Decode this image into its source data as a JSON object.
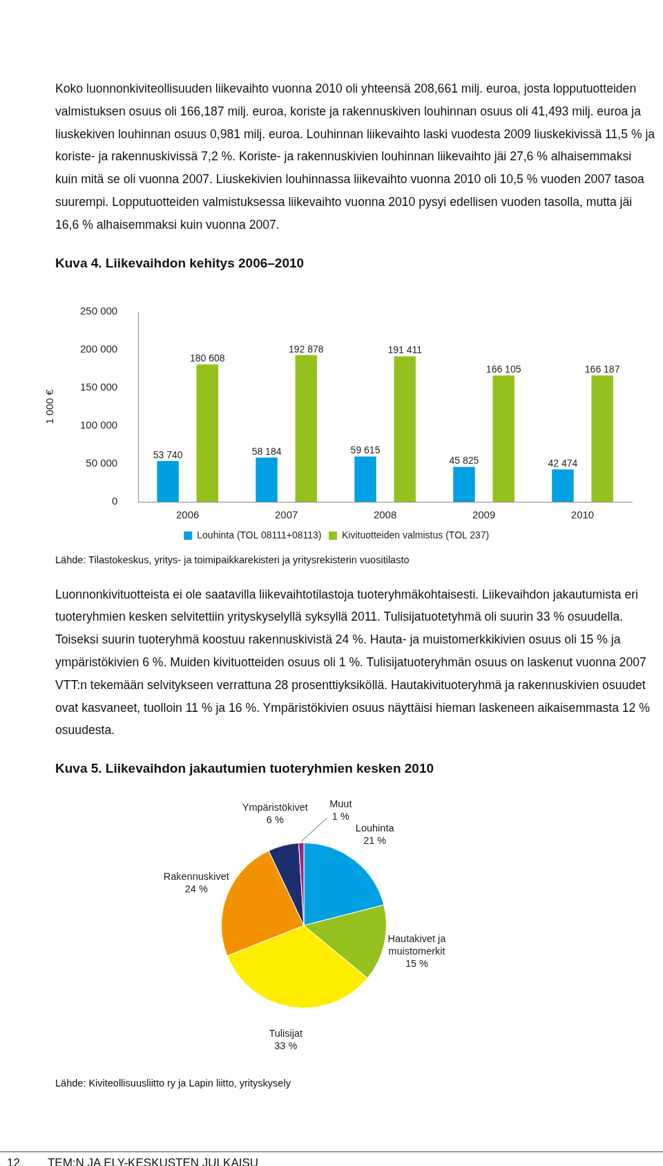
{
  "chart_data": [
    {
      "type": "other",
      "annotations": [
        "Koko luonnonkiviteollisuuden liikevaihto vuonna 2010 oli yhteensä 208,661 milj. euroa, josta lopputuotteiden valmistuksen osuus oli 166,187 milj. euroa, koriste ja rakennuskiven louhinnan osuus oli 41,493 milj. euroa ja liuskekiven louhinnan osuus 0,981 milj. euroa. Louhinnan liikevaihto laski vuodesta 2009 liuskekivissä 11,5 % ja koriste- ja rakennuskivissä 7,2 %. Koriste- ja rakennuskivien louhinnan liikevaihto jäi 27,6 % alhaisemmaksi kuin mitä se oli vuonna 2007. Liuskekivien louhinnassa liikevaihto vuonna 2010 oli 10,5 % vuoden 2007 tasoa suurempi. Lopputuotteiden valmistuksessa liikevaihto vuonna 2010 pysyi edellisen vuoden tasolla, mutta jäi 16,6 % alhaisemmaksi kuin vuonna 2007."
      ]
    },
    {
      "type": "bar",
      "title": "Kuva 4. Liikevaihdon kehitys 2006–2010",
      "ylabel": "1 000 €",
      "categories": [
        "2006",
        "2007",
        "2008",
        "2009",
        "2010"
      ],
      "series": [
        {
          "name": "Louhinta (TOL 08111+08113)",
          "color": "#00a0e3",
          "values": [
            53740,
            58184,
            59615,
            45825,
            42474
          ],
          "value_labels": [
            "53 740",
            "58 184",
            "59 615",
            "45 825",
            "42 474"
          ]
        },
        {
          "name": "Kivituotteiden valmistus (TOL 237)",
          "color": "#95c11f",
          "values": [
            180608,
            192878,
            191411,
            166105,
            166187
          ],
          "value_labels": [
            "180 608",
            "192 878",
            "191 411",
            "166 105",
            "166 187"
          ]
        }
      ],
      "ylim": [
        0,
        250000
      ],
      "yticks": [
        {
          "value": 0,
          "label": "0"
        },
        {
          "value": 50000,
          "label": "50 000"
        },
        {
          "value": 100000,
          "label": "100 000"
        },
        {
          "value": 150000,
          "label": "150 000"
        },
        {
          "value": 200000,
          "label": "200 000"
        },
        {
          "value": 250000,
          "label": "250 000"
        }
      ],
      "legend": "bottom",
      "annotations": [
        "Lähde: Tilastokeskus, yritys- ja toimipaikkarekisteri ja yritysrekisterin vuositilasto"
      ]
    },
    {
      "type": "other",
      "annotations": [
        "Luonnonkivituotteista ei ole saatavilla liikevaihtotilastoja tuoteryhmäkohtaisesti. Liikevaihdon jakautumista eri tuoteryhmien kesken selvitettiin yrityskyselyllä syksyllä 2011. Tulisijatuotetyhmä oli suurin 33 % osuudella. Toiseksi suurin tuoteryhmä koostuu rakennuskivistä 24 %. Hauta- ja muistomerkkikivien osuus oli 15 % ja ympäristökivien 6 %. Muiden kivituotteiden osuus oli 1 %. Tulisijatuoteryhmän osuus on laskenut vuonna 2007 VTT:n tekemään selvitykseen verrattuna 28 prosenttiyksiköllä. Hautakivituoteryhmä ja rakennuskivien osuudet ovat kasvaneet, tuolloin 11 % ja 16 %. Ympäristökivien osuus näyttäisi hieman laskeneen aikaisemmasta 12 % osuudesta."
      ]
    },
    {
      "type": "pie",
      "title": "Kuva 5. Liikevaihdon jakautumien tuoteryhmien kesken 2010",
      "categories": [
        "Louhinta",
        "Hautakivet ja muistomerkit",
        "Tulisijat",
        "Rakennuskivet",
        "Ympäristökivet",
        "Muut"
      ],
      "values": [
        21,
        15,
        33,
        24,
        6,
        1
      ],
      "colors": [
        "#00a0e3",
        "#95c11f",
        "#ffed00",
        "#f39200",
        "#1d2e6e",
        "#a0237e"
      ],
      "value_labels": [
        "21 %",
        "15 %",
        "33 %",
        "24 %",
        "6 %",
        "1 %"
      ],
      "annotations": [
        "Lähde: Kiviteollisuusliitto ry ja Lapin liitto, yrityskysely"
      ]
    },
    {
      "type": "other",
      "annotations": [
        "12",
        "TEM:N JA ELY-KESKUSTEN JULKAISU"
      ]
    }
  ]
}
